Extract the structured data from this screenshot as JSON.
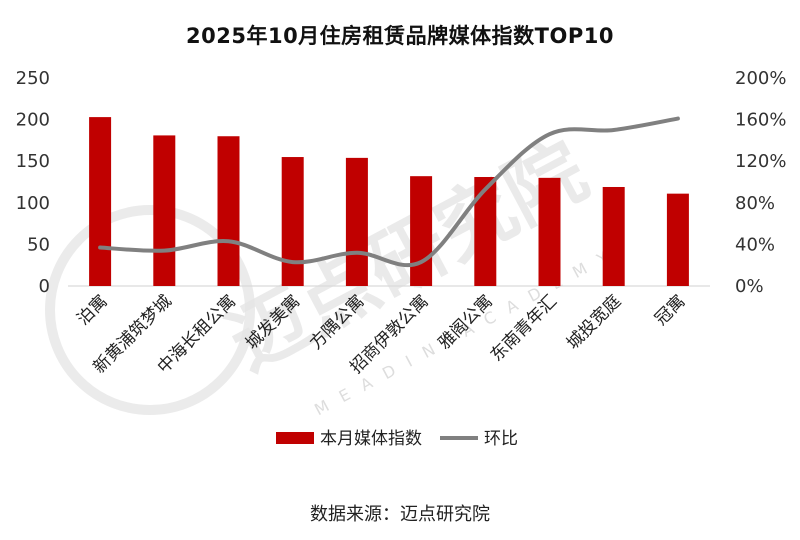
{
  "title": "2025年10月住房租赁品牌媒体指数TOP10",
  "source": "数据来源：迈点研究院",
  "watermark": {
    "text": "迈点研究院",
    "sub": "MEADIN ACADEMY"
  },
  "colors": {
    "bar": "#c00000",
    "line": "#808080",
    "axis": "#d9d9d9"
  },
  "chart_data": {
    "type": "bar",
    "title": "2025年10月住房租赁品牌媒体指数TOP10",
    "categories": [
      "泊寓",
      "新黄浦筑梦城",
      "中海长租公寓",
      "城发美寓",
      "方隅公寓",
      "招商伊敦公寓",
      "雅阁公寓",
      "东南青年汇",
      "城投宽庭",
      "冠寓"
    ],
    "series": [
      {
        "name": "本月媒体指数",
        "type": "bar",
        "axis": "left",
        "values": [
          203,
          181,
          180,
          155,
          154,
          132,
          131,
          130,
          119,
          111
        ]
      },
      {
        "name": "环比",
        "type": "line",
        "axis": "right",
        "unit": "%",
        "values": [
          37,
          34,
          43,
          23,
          32,
          23,
          93,
          146,
          150,
          161
        ]
      }
    ],
    "y_left": {
      "ticks": [
        "0",
        "50",
        "100",
        "150",
        "200",
        "250"
      ],
      "ylim": [
        0,
        250
      ]
    },
    "y_right": {
      "ticks": [
        "0%",
        "40%",
        "80%",
        "120%",
        "160%",
        "200%"
      ],
      "ylim": [
        0,
        200
      ]
    },
    "grid": false,
    "legend": "bottom"
  }
}
